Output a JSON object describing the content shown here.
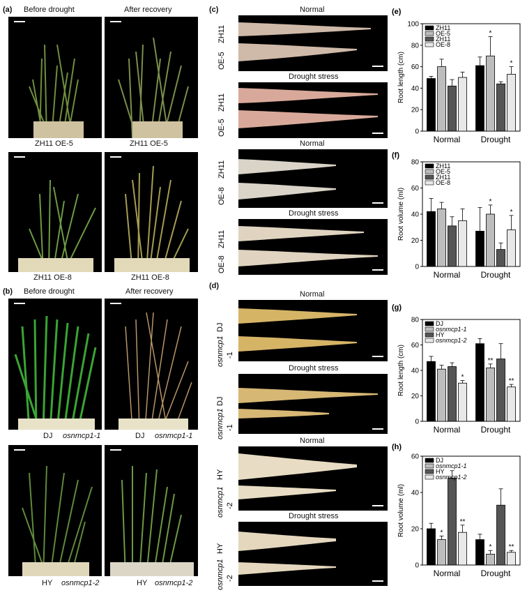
{
  "panels": {
    "a": {
      "letter": "(a)",
      "title_left": "Before drought",
      "title_right": "After recovery",
      "row1_left": "ZH11 OE-5",
      "row1_right": "ZH11  OE-5",
      "row2_left": "ZH11 OE-8",
      "row2_right": "ZH11 OE-8"
    },
    "b": {
      "letter": "(b)",
      "title_left": "Before drought",
      "title_right": "After recovery",
      "row1_left_a": "DJ",
      "row1_left_b": "osnmcp1-1",
      "row1_right_a": "DJ",
      "row1_right_b": "osnmcp1-1",
      "row2_left_a": "HY",
      "row2_left_b": "osnmcp1-2",
      "row2_right_a": "HY",
      "row2_right_b": "osnmcp1-2"
    },
    "c": {
      "letter": "(c)",
      "normal": "Normal",
      "drought": "Drought stress",
      "lab1a": "ZH11",
      "lab1b": "OE-5",
      "lab2a": "ZH11",
      "lab2b": "OE-5",
      "lab3a": "ZH11",
      "lab3b": "OE-8",
      "lab4a": "ZH11",
      "lab4b": "OE-8"
    },
    "d": {
      "letter": "(d)",
      "normal": "Normal",
      "drought": "Drought stress",
      "lab1a": "DJ",
      "lab1b": "osnmcp1",
      "lab1c": "-1",
      "lab2a": "DJ",
      "lab2b": "osnmcp1",
      "lab2c": "-1",
      "lab3a": "HY",
      "lab3b": "osnmcp1",
      "lab3c": "-2",
      "lab4a": "HY",
      "lab4b": "osnmcp1",
      "lab4c": "-2"
    }
  },
  "chart_data": [
    {
      "id": "e",
      "letter": "(e)",
      "type": "bar",
      "ylabel": "Root length (cm)",
      "ylim": [
        0,
        100
      ],
      "yticks": [
        0,
        20,
        40,
        60,
        80,
        100
      ],
      "categories": [
        "Normal",
        "Drought"
      ],
      "series": [
        {
          "name": "ZH11",
          "values": [
            49,
            61
          ],
          "err": [
            2,
            8
          ],
          "sig": [
            "",
            ""
          ]
        },
        {
          "name": "OE-5",
          "values": [
            60,
            70
          ],
          "err": [
            7,
            18
          ],
          "sig": [
            "",
            "*"
          ]
        },
        {
          "name": "ZH11",
          "values": [
            42,
            44
          ],
          "err": [
            6,
            2
          ],
          "sig": [
            "",
            ""
          ]
        },
        {
          "name": "OE-8",
          "values": [
            50,
            53
          ],
          "err": [
            5,
            7
          ],
          "sig": [
            "",
            "*"
          ]
        }
      ],
      "colors": [
        "#000000",
        "#bdbdbd",
        "#555555",
        "#e8e8e8"
      ],
      "legend_italic": false
    },
    {
      "id": "f",
      "letter": "(f)",
      "type": "bar",
      "ylabel": "Root volume (ml)",
      "ylim": [
        0,
        80
      ],
      "yticks": [
        0,
        20,
        40,
        60,
        80
      ],
      "categories": [
        "Normal",
        "Drought"
      ],
      "series": [
        {
          "name": "ZH11",
          "values": [
            42,
            27
          ],
          "err": [
            10,
            18
          ],
          "sig": [
            "",
            ""
          ]
        },
        {
          "name": "OE-5",
          "values": [
            44,
            40
          ],
          "err": [
            5,
            7
          ],
          "sig": [
            "",
            "*"
          ]
        },
        {
          "name": "ZH11",
          "values": [
            31,
            13
          ],
          "err": [
            7,
            5
          ],
          "sig": [
            "",
            ""
          ]
        },
        {
          "name": "OE-8",
          "values": [
            35,
            28
          ],
          "err": [
            9,
            11
          ],
          "sig": [
            "",
            "*"
          ]
        }
      ],
      "colors": [
        "#000000",
        "#bdbdbd",
        "#555555",
        "#e8e8e8"
      ],
      "legend_italic": false
    },
    {
      "id": "g",
      "letter": "(g)",
      "type": "bar",
      "ylabel": "Root length (cm)",
      "ylim": [
        0,
        80
      ],
      "yticks": [
        0,
        20,
        40,
        60,
        80
      ],
      "categories": [
        "Normal",
        "Drought"
      ],
      "series": [
        {
          "name": "DJ",
          "values": [
            47,
            61
          ],
          "err": [
            4,
            4
          ],
          "sig": [
            "",
            ""
          ]
        },
        {
          "name": "osnmcp1-1",
          "values": [
            41,
            42
          ],
          "err": [
            3,
            3
          ],
          "sig": [
            "",
            "**"
          ]
        },
        {
          "name": "HY",
          "values": [
            43,
            49
          ],
          "err": [
            3,
            12
          ],
          "sig": [
            "",
            ""
          ]
        },
        {
          "name": "osnmcp1-2",
          "values": [
            30,
            27
          ],
          "err": [
            2,
            2
          ],
          "sig": [
            "*",
            "**"
          ]
        }
      ],
      "colors": [
        "#000000",
        "#bdbdbd",
        "#555555",
        "#e8e8e8"
      ],
      "legend_italic": [
        false,
        true,
        false,
        true
      ]
    },
    {
      "id": "h",
      "letter": "(h)",
      "type": "bar",
      "ylabel": "Root volume (ml)",
      "ylim": [
        0,
        60
      ],
      "yticks": [
        0,
        20,
        40,
        60
      ],
      "categories": [
        "Normal",
        "Drought"
      ],
      "series": [
        {
          "name": "DJ",
          "values": [
            20,
            14
          ],
          "err": [
            3,
            3
          ],
          "sig": [
            "",
            ""
          ]
        },
        {
          "name": "osnmcp1-1",
          "values": [
            14,
            6
          ],
          "err": [
            2,
            2
          ],
          "sig": [
            "*",
            "*"
          ]
        },
        {
          "name": "HY",
          "values": [
            48,
            33
          ],
          "err": [
            4,
            9
          ],
          "sig": [
            "",
            ""
          ]
        },
        {
          "name": "osnmcp1-2",
          "values": [
            18,
            7
          ],
          "err": [
            4,
            1
          ],
          "sig": [
            "**",
            "**"
          ]
        }
      ],
      "colors": [
        "#000000",
        "#bdbdbd",
        "#555555",
        "#e8e8e8"
      ],
      "legend_italic": [
        false,
        true,
        false,
        true
      ]
    }
  ]
}
